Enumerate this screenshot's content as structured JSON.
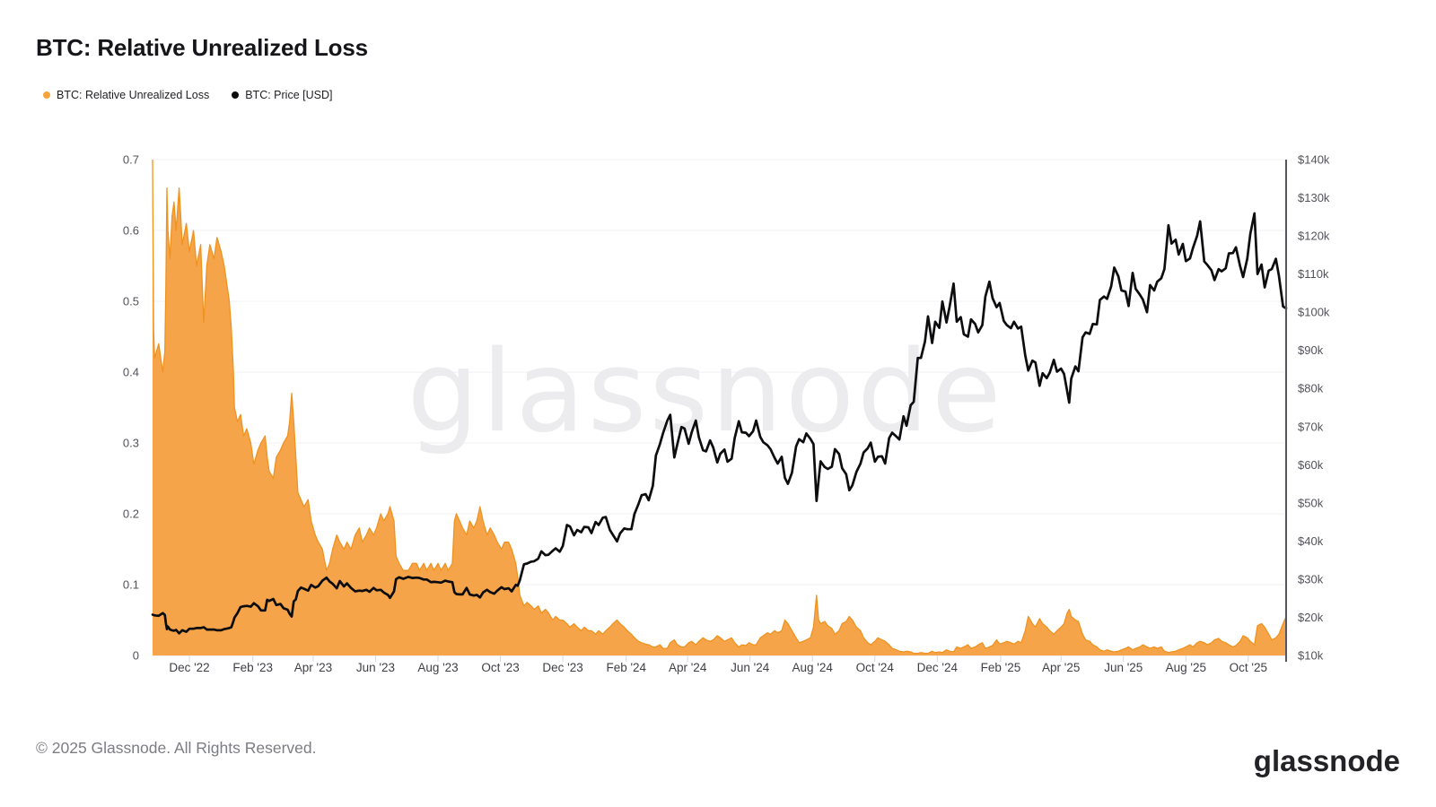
{
  "header": {
    "title": "BTC: Relative Unrealized Loss"
  },
  "legend": [
    {
      "label": "BTC: Relative Unrealized Loss",
      "color": "#F5A43C"
    },
    {
      "label": "BTC: Price [USD]",
      "color": "#0d0d0f"
    }
  ],
  "watermark": "glassnode",
  "footer": {
    "copyright": "© 2025 Glassnode. All Rights Reserved.",
    "brand": "glassnode"
  },
  "chart_data": {
    "type": "area",
    "title": "BTC: Relative Unrealized Loss",
    "start_date": "2022-10-26",
    "end_date": "2025-11-07",
    "grid": "horizontal-only",
    "left_axis": {
      "label": "BTC: Relative Unrealized Loss",
      "min": 0,
      "max": 0.7,
      "ticks": [
        {
          "v": 0,
          "label": "0"
        },
        {
          "v": 0.1,
          "label": "0.1"
        },
        {
          "v": 0.2,
          "label": "0.2"
        },
        {
          "v": 0.3,
          "label": "0.3"
        },
        {
          "v": 0.4,
          "label": "0.4"
        },
        {
          "v": 0.5,
          "label": "0.5"
        },
        {
          "v": 0.6,
          "label": "0.6"
        },
        {
          "v": 0.7,
          "label": "0.7"
        }
      ]
    },
    "right_axis": {
      "label": "BTC: Price [USD]",
      "min": 10,
      "max": 140,
      "ticks": [
        {
          "v": 10,
          "label": "$10k"
        },
        {
          "v": 20,
          "label": "$20k"
        },
        {
          "v": 30,
          "label": "$30k"
        },
        {
          "v": 40,
          "label": "$40k"
        },
        {
          "v": 50,
          "label": "$50k"
        },
        {
          "v": 60,
          "label": "$60k"
        },
        {
          "v": 70,
          "label": "$70k"
        },
        {
          "v": 80,
          "label": "$80k"
        },
        {
          "v": 90,
          "label": "$90k"
        },
        {
          "v": 100,
          "label": "$100k"
        },
        {
          "v": 110,
          "label": "$110k"
        },
        {
          "v": 120,
          "label": "$120k"
        },
        {
          "v": 130,
          "label": "$130k"
        },
        {
          "v": 140,
          "label": "$140k"
        }
      ]
    },
    "x_ticks": [
      {
        "t": 36,
        "label": "Dec '22"
      },
      {
        "t": 98,
        "label": "Feb '23"
      },
      {
        "t": 157,
        "label": "Apr '23"
      },
      {
        "t": 218,
        "label": "Jun '23"
      },
      {
        "t": 279,
        "label": "Aug '23"
      },
      {
        "t": 340,
        "label": "Oct '23"
      },
      {
        "t": 401,
        "label": "Dec '23"
      },
      {
        "t": 463,
        "label": "Feb '24"
      },
      {
        "t": 523,
        "label": "Apr '24"
      },
      {
        "t": 584,
        "label": "Jun '24"
      },
      {
        "t": 645,
        "label": "Aug '24"
      },
      {
        "t": 706,
        "label": "Oct '24"
      },
      {
        "t": 767,
        "label": "Dec '24"
      },
      {
        "t": 829,
        "label": "Feb '25"
      },
      {
        "t": 888,
        "label": "Apr '25"
      },
      {
        "t": 949,
        "label": "Jun '25"
      },
      {
        "t": 1010,
        "label": "Aug '25"
      },
      {
        "t": 1071,
        "label": "Oct '25"
      }
    ],
    "t": [
      0,
      1,
      2,
      6,
      10,
      12,
      13,
      14,
      15,
      17,
      19,
      21,
      23,
      26,
      29,
      33,
      36,
      40,
      43,
      47,
      50,
      53,
      56,
      60,
      63,
      67,
      70,
      72,
      75,
      77,
      79,
      80,
      83,
      86,
      89,
      92,
      96,
      99,
      103,
      106,
      110,
      112,
      114,
      118,
      121,
      125,
      128,
      132,
      134,
      136,
      138,
      140,
      142,
      145,
      148,
      152,
      155,
      159,
      162,
      166,
      170,
      173,
      176,
      180,
      183,
      187,
      190,
      194,
      198,
      202,
      205,
      209,
      212,
      216,
      219,
      223,
      226,
      230,
      232,
      236,
      238,
      241,
      245,
      250,
      254,
      258,
      261,
      265,
      268,
      272,
      275,
      279,
      282,
      286,
      289,
      293,
      295,
      297,
      300,
      303,
      307,
      310,
      314,
      317,
      320,
      323,
      327,
      330,
      334,
      337,
      341,
      344,
      348,
      351,
      355,
      357,
      359,
      363,
      366,
      370,
      373,
      377,
      380,
      384,
      387,
      391,
      394,
      398,
      401,
      405,
      408,
      412,
      415,
      419,
      422,
      426,
      429,
      433,
      436,
      440,
      443,
      447,
      450,
      454,
      457,
      461,
      464,
      468,
      471,
      475,
      478,
      482,
      485,
      489,
      492,
      496,
      499,
      503,
      506,
      510,
      513,
      517,
      520,
      524,
      527,
      531,
      534,
      538,
      541,
      545,
      548,
      552,
      555,
      559,
      562,
      566,
      569,
      573,
      576,
      580,
      583,
      587,
      590,
      594,
      597,
      601,
      604,
      608,
      611,
      615,
      618,
      621,
      625,
      629,
      632,
      636,
      639,
      643,
      646,
      649,
      651,
      653,
      657,
      660,
      664,
      667,
      671,
      674,
      678,
      681,
      684,
      688,
      692,
      695,
      699,
      702,
      706,
      709,
      713,
      716,
      720,
      723,
      727,
      730,
      734,
      737,
      741,
      744,
      748,
      751,
      755,
      758,
      762,
      765,
      769,
      772,
      776,
      779,
      783,
      786,
      790,
      793,
      797,
      800,
      804,
      807,
      811,
      814,
      818,
      821,
      825,
      828,
      832,
      835,
      839,
      842,
      846,
      849,
      853,
      856,
      860,
      863,
      867,
      870,
      874,
      877,
      881,
      884,
      888,
      891,
      894,
      896,
      898,
      902,
      905,
      909,
      912,
      916,
      919,
      923,
      926,
      930,
      933,
      937,
      940,
      944,
      947,
      951,
      954,
      958,
      961,
      965,
      968,
      972,
      975,
      979,
      982,
      986,
      989,
      993,
      996,
      1000,
      1003,
      1007,
      1010,
      1014,
      1017,
      1021,
      1024,
      1028,
      1031,
      1035,
      1038,
      1042,
      1045,
      1049,
      1052,
      1056,
      1059,
      1063,
      1066,
      1070,
      1073,
      1077,
      1080,
      1084,
      1087,
      1091,
      1094,
      1098,
      1101,
      1105,
      1108
    ],
    "series": [
      {
        "name": "BTC: Relative Unrealized Loss",
        "type": "area",
        "axis": "left",
        "fill": "#F5A44A",
        "stroke": "#EF9320",
        "values": [
          0.7,
          0.46,
          0.42,
          0.44,
          0.4,
          0.43,
          0.52,
          0.66,
          0.6,
          0.56,
          0.62,
          0.64,
          0.6,
          0.66,
          0.58,
          0.61,
          0.57,
          0.6,
          0.55,
          0.58,
          0.47,
          0.55,
          0.58,
          0.56,
          0.59,
          0.57,
          0.55,
          0.53,
          0.5,
          0.46,
          0.4,
          0.35,
          0.33,
          0.34,
          0.31,
          0.32,
          0.3,
          0.27,
          0.29,
          0.3,
          0.31,
          0.28,
          0.26,
          0.25,
          0.28,
          0.29,
          0.3,
          0.31,
          0.33,
          0.37,
          0.33,
          0.28,
          0.23,
          0.22,
          0.21,
          0.22,
          0.19,
          0.17,
          0.16,
          0.15,
          0.12,
          0.13,
          0.15,
          0.17,
          0.16,
          0.15,
          0.16,
          0.15,
          0.17,
          0.18,
          0.16,
          0.17,
          0.18,
          0.17,
          0.18,
          0.2,
          0.19,
          0.2,
          0.21,
          0.19,
          0.14,
          0.13,
          0.12,
          0.12,
          0.13,
          0.13,
          0.12,
          0.13,
          0.12,
          0.13,
          0.12,
          0.13,
          0.12,
          0.13,
          0.12,
          0.13,
          0.19,
          0.2,
          0.19,
          0.18,
          0.17,
          0.19,
          0.18,
          0.19,
          0.21,
          0.19,
          0.17,
          0.18,
          0.17,
          0.16,
          0.15,
          0.16,
          0.16,
          0.15,
          0.13,
          0.11,
          0.085,
          0.07,
          0.075,
          0.07,
          0.065,
          0.07,
          0.06,
          0.065,
          0.06,
          0.05,
          0.055,
          0.05,
          0.05,
          0.045,
          0.04,
          0.045,
          0.04,
          0.035,
          0.04,
          0.035,
          0.035,
          0.03,
          0.035,
          0.03,
          0.035,
          0.04,
          0.045,
          0.05,
          0.045,
          0.04,
          0.035,
          0.03,
          0.025,
          0.02,
          0.018,
          0.016,
          0.015,
          0.012,
          0.012,
          0.015,
          0.01,
          0.01,
          0.018,
          0.022,
          0.015,
          0.012,
          0.012,
          0.018,
          0.02,
          0.015,
          0.02,
          0.025,
          0.022,
          0.02,
          0.022,
          0.028,
          0.025,
          0.02,
          0.022,
          0.025,
          0.018,
          0.012,
          0.015,
          0.014,
          0.018,
          0.015,
          0.015,
          0.025,
          0.028,
          0.032,
          0.03,
          0.035,
          0.032,
          0.035,
          0.05,
          0.045,
          0.035,
          0.025,
          0.018,
          0.02,
          0.022,
          0.025,
          0.04,
          0.085,
          0.05,
          0.045,
          0.048,
          0.042,
          0.038,
          0.03,
          0.035,
          0.045,
          0.048,
          0.055,
          0.05,
          0.04,
          0.035,
          0.025,
          0.018,
          0.015,
          0.02,
          0.025,
          0.022,
          0.02,
          0.015,
          0.01,
          0.008,
          0.006,
          0.005,
          0.006,
          0.005,
          0.003,
          0.003,
          0.004,
          0.003,
          0.003,
          0.006,
          0.004,
          0.005,
          0.004,
          0.008,
          0.006,
          0.005,
          0.012,
          0.01,
          0.012,
          0.015,
          0.01,
          0.012,
          0.015,
          0.018,
          0.01,
          0.012,
          0.014,
          0.022,
          0.016,
          0.018,
          0.02,
          0.018,
          0.016,
          0.02,
          0.018,
          0.035,
          0.055,
          0.045,
          0.04,
          0.052,
          0.045,
          0.04,
          0.035,
          0.03,
          0.035,
          0.04,
          0.045,
          0.06,
          0.065,
          0.055,
          0.05,
          0.048,
          0.03,
          0.022,
          0.02,
          0.015,
          0.012,
          0.008,
          0.006,
          0.008,
          0.006,
          0.005,
          0.006,
          0.008,
          0.01,
          0.012,
          0.008,
          0.01,
          0.012,
          0.015,
          0.012,
          0.01,
          0.012,
          0.01,
          0.012,
          0.006,
          0.004,
          0.005,
          0.006,
          0.008,
          0.01,
          0.012,
          0.015,
          0.012,
          0.018,
          0.02,
          0.018,
          0.015,
          0.018,
          0.022,
          0.024,
          0.02,
          0.018,
          0.015,
          0.012,
          0.014,
          0.02,
          0.028,
          0.025,
          0.02,
          0.015,
          0.042,
          0.045,
          0.04,
          0.03,
          0.022,
          0.025,
          0.03,
          0.045,
          0.055
        ]
      },
      {
        "name": "BTC: Price [USD]",
        "type": "line",
        "axis": "right",
        "color": "#0d0d0f",
        "values": [
          20.7,
          20.6,
          20.5,
          20.4,
          21.1,
          20.6,
          18.5,
          16.9,
          17.6,
          16.8,
          16.6,
          16.5,
          16.7,
          15.8,
          16.6,
          16.2,
          17.0,
          17.0,
          17.2,
          17.2,
          17.4,
          16.8,
          16.8,
          16.8,
          16.6,
          16.6,
          16.9,
          17.0,
          17.2,
          17.4,
          19.0,
          19.9,
          21.1,
          22.7,
          22.9,
          23.0,
          22.8,
          23.7,
          22.9,
          21.8,
          21.8,
          24.6,
          24.3,
          24.8,
          23.2,
          23.5,
          22.4,
          22.0,
          20.9,
          20.2,
          24.2,
          24.7,
          26.9,
          27.8,
          27.5,
          27.0,
          28.5,
          27.8,
          28.2,
          29.6,
          30.4,
          29.4,
          28.8,
          27.6,
          29.5,
          28.1,
          28.9,
          27.7,
          26.8,
          27.0,
          26.9,
          27.2,
          26.7,
          27.7,
          27.1,
          27.2,
          26.5,
          25.9,
          25.1,
          26.8,
          30.0,
          30.5,
          30.1,
          30.6,
          30.3,
          30.4,
          30.3,
          29.9,
          29.9,
          29.2,
          29.3,
          29.2,
          29.1,
          29.6,
          29.4,
          29.2,
          26.6,
          26.1,
          26.0,
          26.0,
          27.7,
          26.0,
          25.7,
          25.9,
          25.2,
          26.5,
          27.2,
          26.6,
          26.2,
          27.0,
          27.9,
          27.4,
          27.6,
          26.8,
          28.5,
          28.3,
          29.7,
          33.9,
          34.1,
          34.6,
          34.7,
          35.4,
          37.3,
          36.3,
          36.4,
          37.4,
          38.1,
          37.2,
          38.7,
          44.2,
          43.8,
          41.5,
          42.9,
          42.3,
          43.7,
          43.6,
          42.1,
          45.0,
          44.2,
          46.1,
          46.3,
          42.9,
          41.6,
          39.9,
          42.0,
          43.3,
          43.1,
          43.1,
          47.1,
          49.7,
          52.0,
          52.3,
          50.7,
          54.5,
          62.4,
          65.5,
          68.3,
          71.5,
          73.1,
          61.9,
          65.5,
          69.9,
          69.5,
          65.5,
          68.5,
          71.6,
          67.2,
          63.8,
          63.5,
          66.4,
          64.5,
          60.6,
          62.9,
          64.0,
          60.8,
          61.6,
          67.0,
          71.4,
          68.5,
          68.4,
          67.5,
          68.8,
          71.6,
          67.3,
          65.9,
          65.1,
          64.1,
          61.8,
          60.3,
          62.1,
          56.6,
          55.0,
          57.9,
          64.8,
          66.7,
          65.9,
          68.2,
          66.8,
          65.4,
          50.5,
          56.0,
          60.9,
          59.4,
          58.9,
          59.5,
          64.1,
          62.8,
          59.1,
          57.5,
          53.3,
          54.6,
          58.1,
          60.3,
          63.2,
          64.3,
          65.8,
          60.8,
          62.1,
          62.2,
          60.3,
          67.0,
          68.4,
          67.4,
          66.6,
          72.7,
          70.2,
          75.6,
          76.5,
          88.0,
          88.0,
          92.3,
          98.9,
          91.9,
          97.5,
          95.9,
          102.8,
          97.3,
          101.4,
          107.5,
          97.5,
          98.7,
          94.2,
          93.6,
          98.1,
          96.9,
          94.7,
          96.6,
          104.1,
          108.0,
          103.7,
          101.3,
          102.4,
          97.7,
          96.6,
          95.8,
          97.5,
          95.7,
          96.2,
          88.7,
          84.7,
          87.3,
          86.8,
          80.7,
          84.0,
          82.7,
          84.2,
          87.5,
          84.4,
          85.2,
          83.8,
          79.2,
          76.3,
          82.6,
          85.8,
          84.5,
          93.4,
          94.7,
          94.3,
          96.9,
          96.8,
          103.2,
          104.1,
          103.5,
          106.8,
          111.7,
          109.4,
          105.7,
          105.4,
          101.6,
          110.3,
          106.1,
          104.6,
          103.3,
          100.0,
          107.1,
          105.7,
          108.0,
          108.9,
          111.3,
          122.8,
          118.0,
          119.0,
          115.1,
          117.9,
          113.4,
          114.1,
          116.9,
          120.0,
          123.8,
          113.3,
          112.4,
          111.0,
          108.4,
          111.3,
          110.7,
          111.5,
          115.4,
          115.5,
          117.0,
          112.1,
          109.2,
          114.0,
          120.5,
          125.9,
          110.0,
          112.5,
          106.5,
          110.9,
          111.3,
          114.0,
          109.5,
          101.5,
          101.0
        ]
      }
    ],
    "colors": {
      "grid": "#f1f1f4",
      "baseline": "#e6e6ea",
      "tick": "#d8d8dd",
      "right_axis_line": "#55555e"
    }
  }
}
